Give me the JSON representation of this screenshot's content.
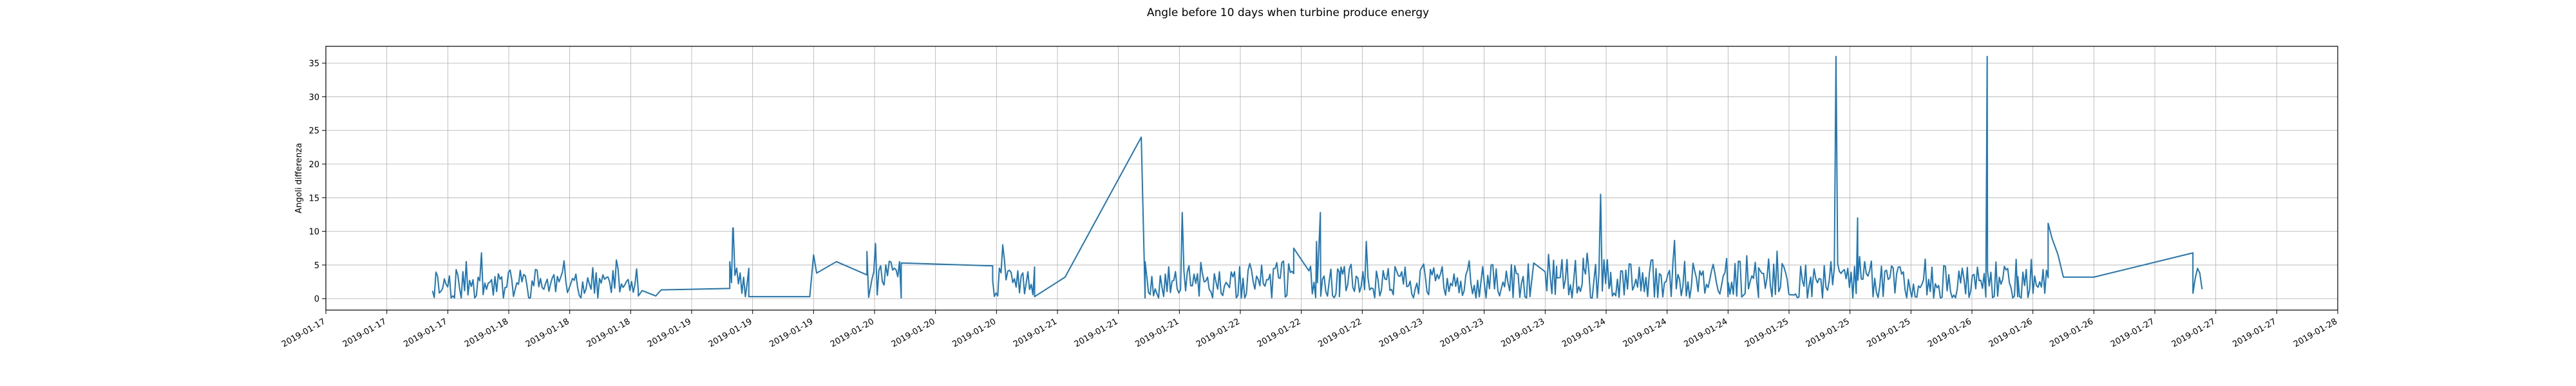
{
  "chart_data": {
    "type": "line",
    "title": "Angle before 10 days when turbine produce energy",
    "xlabel": "",
    "ylabel": "Angoli differenza",
    "grid": true,
    "y_ticks": [
      "0",
      "5",
      "10",
      "15",
      "20",
      "25",
      "30",
      "35"
    ],
    "x_ticks": [
      "2019-01-17",
      "2019-01-17",
      "2019-01-17",
      "2019-01-18",
      "2019-01-18",
      "2019-01-18",
      "2019-01-19",
      "2019-01-19",
      "2019-01-19",
      "2019-01-20",
      "2019-01-20",
      "2019-01-20",
      "2019-01-21",
      "2019-01-21",
      "2019-01-21",
      "2019-01-22",
      "2019-01-22",
      "2019-01-22",
      "2019-01-23",
      "2019-01-23",
      "2019-01-23",
      "2019-01-24",
      "2019-01-24",
      "2019-01-24",
      "2019-01-25",
      "2019-01-25",
      "2019-01-25",
      "2019-01-26",
      "2019-01-26",
      "2019-01-26",
      "2019-01-27",
      "2019-01-27",
      "2019-01-27",
      "2019-01-28"
    ],
    "x_tick_hours": [
      0,
      8,
      16,
      24,
      32,
      40,
      48,
      56,
      64,
      72,
      80,
      88,
      96,
      104,
      112,
      120,
      128,
      136,
      144,
      152,
      160,
      168,
      176,
      184,
      192,
      200,
      208,
      216,
      224,
      232,
      240,
      248,
      256,
      264
    ],
    "xlim_hours": [
      0,
      264
    ],
    "ylim": [
      -1.7,
      37.5
    ],
    "color": "#1f77b4",
    "series_segments": [
      {
        "from": 14.0,
        "to": 41.0,
        "seed": 11,
        "base": 2.0,
        "amp": 3.5,
        "peak": 6.8
      },
      {
        "from": 43.3,
        "to": 46.5,
        "points": [
          [
            43.3,
            0.4
          ],
          [
            43.6,
            0.8
          ],
          [
            44.0,
            1.3
          ]
        ]
      },
      {
        "from": 53.0,
        "to": 55.5,
        "seed": 23,
        "base": 2.0,
        "amp": 4.0,
        "peak": 10.5
      },
      {
        "from": 71.0,
        "to": 75.5,
        "seed": 37,
        "base": 2.5,
        "amp": 4.0,
        "peak": 8.2
      },
      {
        "from": 87.5,
        "to": 93.0,
        "seed": 41,
        "base": 1.8,
        "amp": 4.0,
        "peak": 8.0
      },
      {
        "from": 107.5,
        "to": 127.0,
        "seed": 53,
        "base": 2.2,
        "amp": 4.5,
        "peak": 12.8
      },
      {
        "from": 129.0,
        "to": 158.0,
        "seed": 61,
        "base": 2.0,
        "amp": 4.2,
        "peak": 8.5
      },
      {
        "from": 160.0,
        "to": 188.0,
        "seed": 71,
        "base": 2.2,
        "amp": 4.8,
        "peak": 15.5
      },
      {
        "from": 188.0,
        "to": 226.0,
        "seed": 83,
        "base": 2.2,
        "amp": 4.8,
        "peak": 36.0
      },
      {
        "from": 226.0,
        "to": 232.0,
        "points": [
          [
            226.0,
            11.2
          ],
          [
            226.5,
            9.0
          ],
          [
            227.3,
            6.5
          ],
          [
            228.0,
            3.2
          ]
        ]
      },
      {
        "from": 245.0,
        "to": 246.2,
        "points": [
          [
            245.0,
            6.8
          ],
          [
            245.3,
            3.0
          ],
          [
            245.6,
            4.5
          ],
          [
            245.9,
            3.8
          ],
          [
            246.2,
            1.4
          ]
        ]
      }
    ],
    "key_points": [
      [
        41.0,
        0.4
      ],
      [
        41.5,
        1.2
      ],
      [
        53.0,
        5.5
      ],
      [
        53.4,
        10.5
      ],
      [
        55.5,
        0.3
      ],
      [
        63.5,
        0.3
      ],
      [
        64.0,
        6.5
      ],
      [
        64.4,
        3.8
      ],
      [
        67.0,
        5.5
      ],
      [
        71.0,
        7.0
      ],
      [
        75.5,
        5.3
      ],
      [
        87.5,
        2.7
      ],
      [
        93.0,
        0.3
      ],
      [
        97.0,
        3.2
      ],
      [
        107.0,
        24.0
      ],
      [
        107.5,
        5.5
      ],
      [
        127.0,
        7.5
      ],
      [
        130.0,
        8.5
      ],
      [
        130.5,
        12.8
      ],
      [
        133.0,
        0.3
      ],
      [
        158.0,
        0.3
      ],
      [
        158.5,
        5.3
      ],
      [
        161.5,
        4.8
      ],
      [
        162.0,
        3.5
      ],
      [
        165.0,
        6.0
      ],
      [
        168.5,
        2.0
      ],
      [
        184.0,
        0.3
      ],
      [
        195.0,
        0.3
      ],
      [
        201.0,
        12.0
      ],
      [
        218.0,
        36.0
      ],
      [
        222.0,
        0.3
      ],
      [
        226.0,
        11.2
      ],
      [
        232.0,
        3.2
      ],
      [
        245.0,
        0.8
      ]
    ]
  }
}
